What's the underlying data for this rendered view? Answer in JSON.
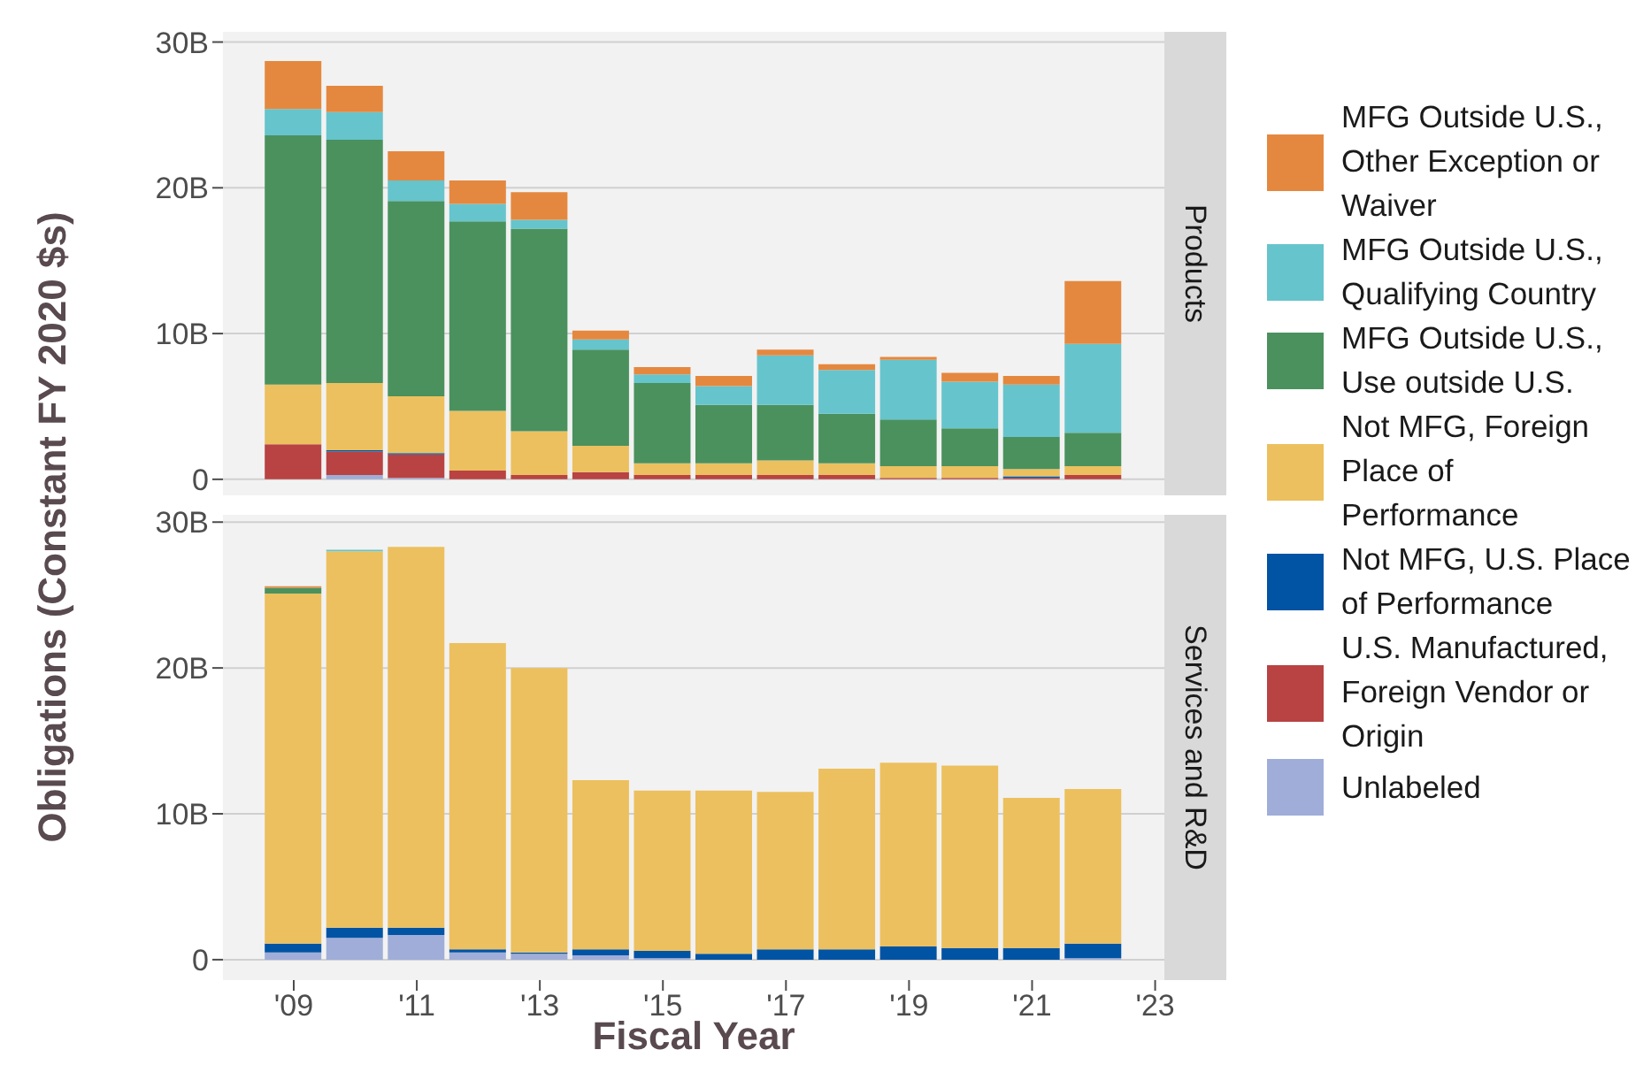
{
  "chart_data": [
    {
      "type": "bar",
      "title": "Products",
      "ylabel": "Obligations (Constant FY 2020 $s)",
      "stacked": true,
      "grid": "y",
      "legend": "right",
      "tick_labels": "y",
      "x": [
        2009,
        2010,
        2011,
        2012,
        2013,
        2014,
        2015,
        2016,
        2017,
        2018,
        2019,
        2020,
        2021,
        2022
      ],
      "xlim": [
        2007.85,
        2023.15
      ],
      "ylim": [
        -1.1,
        30.7
      ],
      "yticks": [
        0,
        {
          "value": 10,
          "label": "10B"
        },
        {
          "value": 20,
          "label": "20B"
        },
        {
          "value": 30,
          "label": "30B"
        }
      ],
      "series": [
        {
          "name": "Unlabeled",
          "color": "#9fadd8",
          "values": [
            0,
            0.3,
            0.1,
            0,
            0,
            0,
            0,
            0,
            0,
            0,
            0,
            0,
            0,
            0
          ]
        },
        {
          "name": "U.S. Manufactured, Foreign Vendor or Origin",
          "color": "#b94242",
          "values": [
            2.4,
            1.6,
            1.6,
            0.6,
            0.3,
            0.5,
            0.3,
            0.3,
            0.3,
            0.3,
            0.1,
            0.1,
            0.1,
            0.3
          ]
        },
        {
          "name": "Not MFG, U.S. Place of Performance",
          "color": "#0153a4",
          "values": [
            0,
            0.1,
            0.1,
            0,
            0,
            0,
            0,
            0,
            0,
            0,
            0,
            0,
            0.1,
            0
          ]
        },
        {
          "name": "Not MFG, Foreign Place of Performance",
          "color": "#ecc05e",
          "values": [
            4.1,
            4.6,
            3.9,
            4.1,
            3.0,
            1.8,
            0.8,
            0.8,
            1.0,
            0.8,
            0.8,
            0.8,
            0.5,
            0.6
          ]
        },
        {
          "name": "MFG Outside U.S., Use outside U.S.",
          "color": "#4a915e",
          "values": [
            17.1,
            16.7,
            13.4,
            13.0,
            13.9,
            6.6,
            5.5,
            4.0,
            3.8,
            3.4,
            3.2,
            2.6,
            2.2,
            2.3
          ]
        },
        {
          "name": "MFG Outside U.S., Qualifying Country",
          "color": "#66c4cc",
          "values": [
            1.8,
            1.9,
            1.4,
            1.2,
            0.6,
            0.7,
            0.6,
            1.3,
            3.4,
            3.0,
            4.1,
            3.2,
            3.6,
            6.1
          ]
        },
        {
          "name": "MFG Outside U.S., Other Exception or Waiver",
          "color": "#e5883f",
          "values": [
            3.3,
            1.8,
            2.0,
            1.6,
            1.9,
            0.6,
            0.5,
            0.7,
            0.4,
            0.4,
            0.2,
            0.6,
            0.6,
            4.3
          ]
        }
      ]
    },
    {
      "type": "bar",
      "title": "Services and R&D",
      "xlabel": "Fiscal Year",
      "stacked": true,
      "grid": "y",
      "x": [
        2009,
        2010,
        2011,
        2012,
        2013,
        2014,
        2015,
        2016,
        2017,
        2018,
        2019,
        2020,
        2021,
        2022
      ],
      "xlim": [
        2007.85,
        2023.15
      ],
      "xticks": [
        {
          "value": 2009,
          "label": "'09"
        },
        {
          "value": 2011,
          "label": "'11"
        },
        {
          "value": 2013,
          "label": "'13"
        },
        {
          "value": 2015,
          "label": "'15"
        },
        {
          "value": 2017,
          "label": "'17"
        },
        {
          "value": 2019,
          "label": "'19"
        },
        {
          "value": 2021,
          "label": "'21"
        },
        {
          "value": 2023,
          "label": "'23"
        }
      ],
      "ylim": [
        -1.4,
        30.5
      ],
      "yticks": [
        0,
        {
          "value": 10,
          "label": "10B"
        },
        {
          "value": 20,
          "label": "20B"
        },
        {
          "value": 30,
          "label": "30B"
        }
      ],
      "series": [
        {
          "color": "#9fadd8",
          "values": [
            0.5,
            1.5,
            1.7,
            0.5,
            0.4,
            0.3,
            0.1,
            0,
            0,
            0,
            0,
            0,
            0,
            0.1
          ]
        },
        {
          "color": "#b94242",
          "values": [
            0,
            0,
            0,
            0,
            0,
            0,
            0,
            0,
            0,
            0,
            0,
            0,
            0,
            0
          ]
        },
        {
          "color": "#0153a4",
          "values": [
            0.6,
            0.7,
            0.5,
            0.2,
            0.1,
            0.4,
            0.5,
            0.4,
            0.7,
            0.7,
            0.9,
            0.8,
            0.8,
            1.0
          ]
        },
        {
          "color": "#ecc05e",
          "values": [
            24.0,
            25.8,
            26.1,
            21.0,
            19.5,
            11.6,
            11.0,
            11.2,
            10.8,
            12.4,
            12.6,
            12.5,
            10.3,
            10.6
          ]
        },
        {
          "color": "#4a915e",
          "values": [
            0.4,
            0,
            0,
            0,
            0,
            0,
            0,
            0,
            0,
            0,
            0,
            0,
            0,
            0
          ]
        },
        {
          "color": "#66c4cc",
          "values": [
            0,
            0.1,
            0,
            0,
            0,
            0,
            0,
            0,
            0,
            0,
            0,
            0,
            0,
            0
          ]
        },
        {
          "color": "#e5883f",
          "values": [
            0.1,
            0,
            0,
            0,
            0,
            0,
            0,
            0,
            0,
            0,
            0,
            0,
            0,
            0
          ]
        }
      ]
    }
  ]
}
